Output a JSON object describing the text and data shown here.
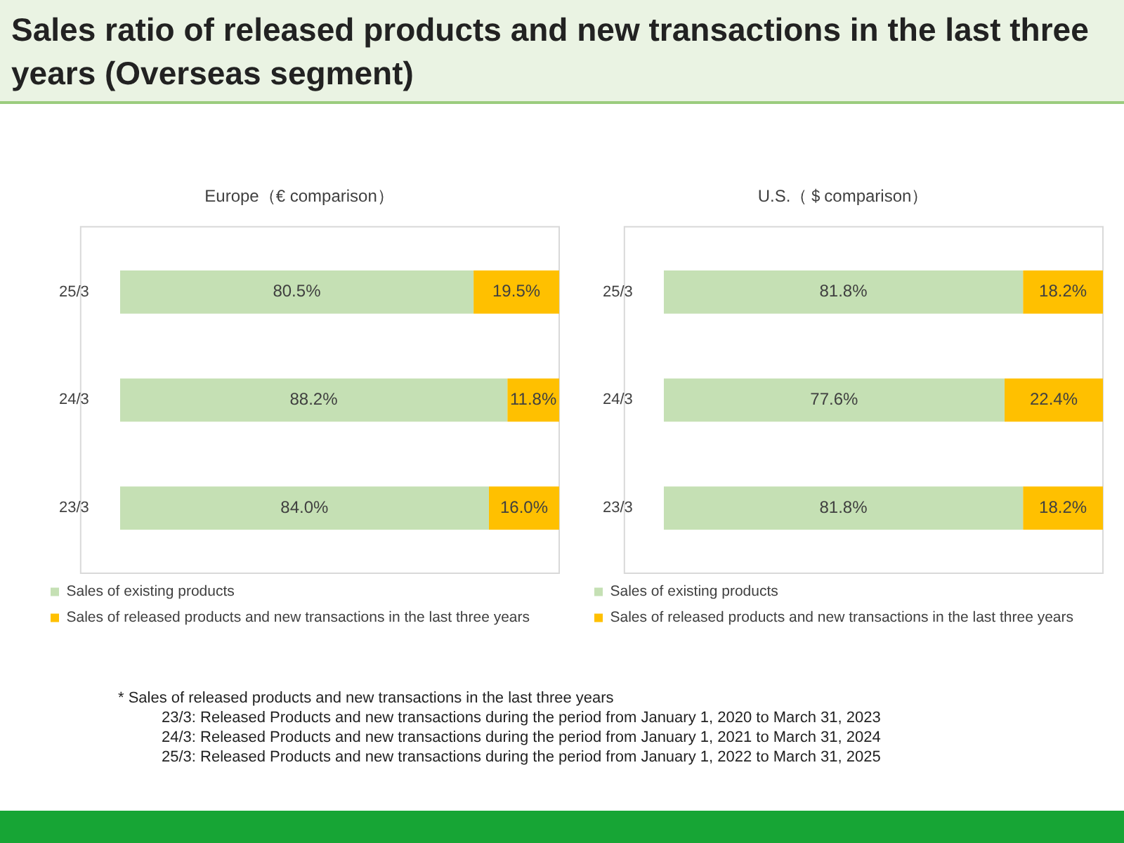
{
  "chart_data": [
    {
      "type": "bar",
      "orientation": "horizontal",
      "stacked": true,
      "title": "Europe（€ comparison）",
      "categories": [
        "25/3",
        "24/3",
        "23/3"
      ],
      "xlim": [
        0,
        100
      ],
      "tick_labels": "y",
      "grid": false,
      "legend": "bottom",
      "annotations": [
        "Sales ratio of released products and new transactions in the last three years (Overseas segment)"
      ],
      "series": [
        {
          "name": "Sales of existing products",
          "color": "#c5e0b4",
          "values": [
            80.5,
            88.2,
            84.0
          ],
          "value_labels": [
            "80.5%",
            "88.2%",
            "84.0%"
          ]
        },
        {
          "name": "Sales of released products and new transactions in the last three years",
          "color": "#ffc000",
          "values": [
            19.5,
            11.8,
            16.0
          ],
          "value_labels": [
            "19.5%",
            "11.8%",
            "16.0%"
          ]
        }
      ]
    },
    {
      "type": "bar",
      "orientation": "horizontal",
      "stacked": true,
      "title": "U.S.（＄comparison）",
      "categories": [
        "25/3",
        "24/3",
        "23/3"
      ],
      "xlim": [
        0,
        100
      ],
      "tick_labels": "y",
      "grid": false,
      "legend": "bottom",
      "annotations": [
        "* Sales of released products and new transactions in the last three years",
        "23/3: Released Products and new transactions during the period from January 1, 2020 to March 31, 2023",
        "24/3: Released Products and new transactions during the period from January 1, 2021 to March 31, 2024",
        "25/3: Released Products and new transactions during the period from January 1, 2022 to March 31, 2025"
      ],
      "series": [
        {
          "name": "Sales of existing products",
          "color": "#c5e0b4",
          "values": [
            81.8,
            77.6,
            81.8
          ],
          "value_labels": [
            "81.8%",
            "77.6%",
            "81.8%"
          ]
        },
        {
          "name": "Sales of released products and new transactions in the last three years",
          "color": "#ffc000",
          "values": [
            18.2,
            22.4,
            18.2
          ],
          "value_labels": [
            "18.2%",
            "22.4%",
            "18.2%"
          ]
        }
      ]
    }
  ]
}
